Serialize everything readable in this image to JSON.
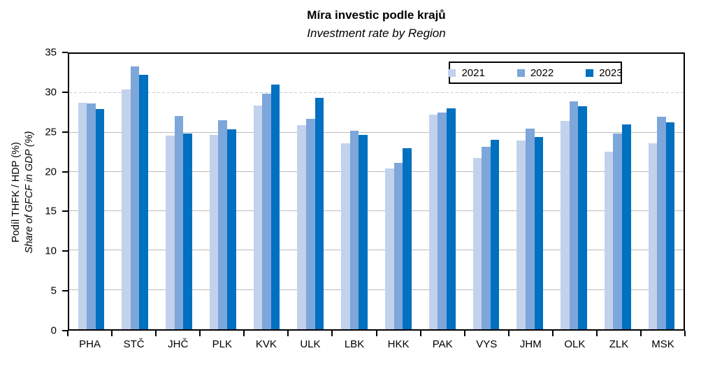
{
  "title": "Míra investic podle krajů",
  "subtitle": "Investment rate by Region",
  "y_axis": {
    "label_cs": "Podíl THFK / HDP (%)",
    "label_en": "Share of GFCF in GDP (%)",
    "ticks": [
      0,
      5,
      10,
      15,
      20,
      25,
      30,
      35
    ]
  },
  "legend": {
    "items": [
      {
        "label": "2021",
        "color": "#c2d1ec"
      },
      {
        "label": "2022",
        "color": "#7da6da"
      },
      {
        "label": "2023",
        "color": "#0070c0"
      }
    ],
    "position": "top-right inside plot"
  },
  "colors": {
    "series_2021": "#c2d1ec",
    "series_2022": "#7da6da",
    "series_2023": "#0070c0",
    "gridline_solid": "#bbbbbb",
    "gridline_dashed": "#c9c9c9",
    "axis": "#000000",
    "background": "#ffffff"
  },
  "chart_data": {
    "type": "bar",
    "title": "Míra investic podle krajů",
    "subtitle": "Investment rate by Region",
    "ylabel": "Podíl THFK / HDP (%) | Share of GFCF in GDP (%)",
    "xlabel": "",
    "ylim": [
      0,
      35
    ],
    "ytick_step": 5,
    "grid": "horizontal; solid lines at 5,10,15,20,25; dashed line at 30",
    "legend_position": "top-right inside plot area",
    "categories": [
      "PHA",
      "STČ",
      "JHČ",
      "PLK",
      "KVK",
      "ULK",
      "LBK",
      "HKK",
      "PAK",
      "VYS",
      "JHM",
      "OLK",
      "ZLK",
      "MSK"
    ],
    "series": [
      {
        "name": "2021",
        "color": "#c2d1ec",
        "values": [
          28.8,
          30.5,
          24.6,
          24.7,
          28.4,
          25.9,
          23.6,
          20.4,
          27.3,
          21.8,
          24.0,
          26.5,
          22.6,
          23.6
        ]
      },
      {
        "name": "2022",
        "color": "#7da6da",
        "values": [
          28.7,
          33.4,
          27.1,
          26.6,
          29.9,
          26.7,
          25.2,
          21.1,
          27.5,
          23.2,
          25.5,
          29.0,
          24.9,
          27.0
        ]
      },
      {
        "name": "2023",
        "color": "#0070c0",
        "values": [
          28.0,
          32.3,
          24.9,
          25.4,
          31.1,
          29.4,
          24.7,
          23.0,
          28.1,
          24.1,
          24.4,
          28.3,
          26.0,
          26.3
        ]
      }
    ]
  }
}
